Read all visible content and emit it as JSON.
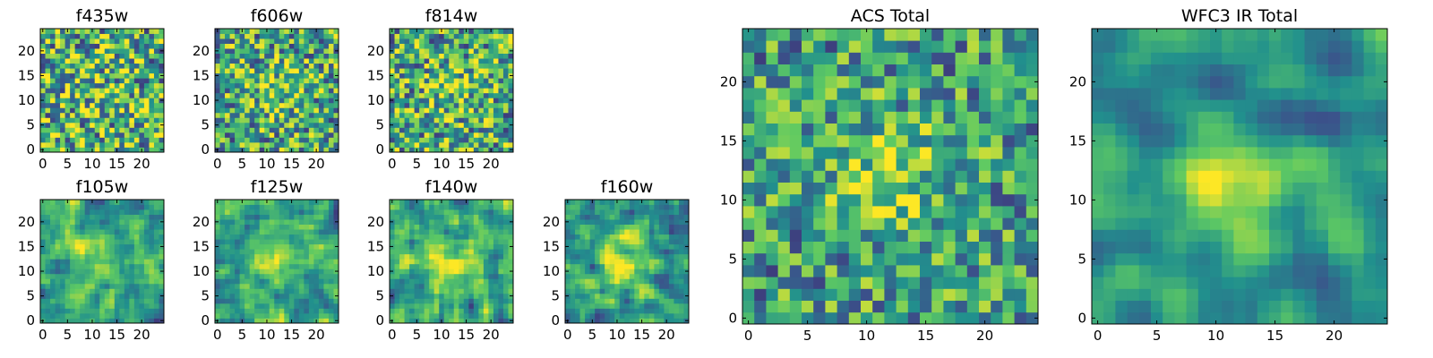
{
  "chart_data": [
    {
      "type": "heatmap",
      "title": "f435w",
      "xticks": [
        "0",
        "5",
        "10",
        "15",
        "20"
      ],
      "yticks": [
        "0",
        "5",
        "10",
        "15",
        "20"
      ],
      "xlim": [
        0,
        25
      ],
      "ylim": [
        0,
        25
      ],
      "grid": [
        25,
        25
      ],
      "colormap": "viridis",
      "seed": 11,
      "smooth": 0,
      "peak": 0.05
    },
    {
      "type": "heatmap",
      "title": "f606w",
      "xticks": [
        "0",
        "5",
        "10",
        "15",
        "20"
      ],
      "yticks": [
        "0",
        "5",
        "10",
        "15",
        "20"
      ],
      "xlim": [
        0,
        25
      ],
      "ylim": [
        0,
        25
      ],
      "grid": [
        25,
        25
      ],
      "colormap": "viridis",
      "seed": 23,
      "smooth": 0,
      "peak": 0.18
    },
    {
      "type": "heatmap",
      "title": "f814w",
      "xticks": [
        "0",
        "5",
        "10",
        "15",
        "20"
      ],
      "yticks": [
        "0",
        "5",
        "10",
        "15",
        "20"
      ],
      "xlim": [
        0,
        25
      ],
      "ylim": [
        0,
        25
      ],
      "grid": [
        25,
        25
      ],
      "colormap": "viridis",
      "seed": 37,
      "smooth": 0,
      "peak": 0.15
    },
    {
      "type": "heatmap",
      "title": "f105w",
      "xticks": [
        "0",
        "5",
        "10",
        "15",
        "20"
      ],
      "yticks": [
        "0",
        "5",
        "10",
        "15",
        "20"
      ],
      "xlim": [
        0,
        25
      ],
      "ylim": [
        0,
        25
      ],
      "grid": [
        25,
        25
      ],
      "colormap": "viridis",
      "seed": 41,
      "smooth": 1,
      "peak": 0.22
    },
    {
      "type": "heatmap",
      "title": "f125w",
      "xticks": [
        "0",
        "5",
        "10",
        "15",
        "20"
      ],
      "yticks": [
        "0",
        "5",
        "10",
        "15",
        "20"
      ],
      "xlim": [
        0,
        25
      ],
      "ylim": [
        0,
        25
      ],
      "grid": [
        25,
        25
      ],
      "colormap": "viridis",
      "seed": 53,
      "smooth": 1,
      "peak": 0.22
    },
    {
      "type": "heatmap",
      "title": "f140w",
      "xticks": [
        "0",
        "5",
        "10",
        "15",
        "20"
      ],
      "yticks": [
        "0",
        "5",
        "10",
        "15",
        "20"
      ],
      "xlim": [
        0,
        25
      ],
      "ylim": [
        0,
        25
      ],
      "grid": [
        25,
        25
      ],
      "colormap": "viridis",
      "seed": 67,
      "smooth": 1,
      "peak": 0.22
    },
    {
      "type": "heatmap",
      "title": "f160w",
      "xticks": [
        "0",
        "5",
        "10",
        "15",
        "20"
      ],
      "yticks": [
        "0",
        "5",
        "10",
        "15",
        "20"
      ],
      "xlim": [
        0,
        25
      ],
      "ylim": [
        0,
        25
      ],
      "grid": [
        25,
        25
      ],
      "colormap": "viridis",
      "seed": 71,
      "smooth": 1,
      "peak": 0.25
    },
    {
      "type": "heatmap",
      "title": "ACS Total",
      "xticks": [
        "0",
        "5",
        "10",
        "15",
        "20"
      ],
      "yticks": [
        "0",
        "5",
        "10",
        "15",
        "20"
      ],
      "xlim": [
        0,
        25
      ],
      "ylim": [
        0,
        25
      ],
      "grid": [
        25,
        25
      ],
      "colormap": "viridis",
      "seed": 83,
      "smooth": 0,
      "peak": 0.28
    },
    {
      "type": "heatmap",
      "title": "WFC3 IR Total",
      "xticks": [
        "0",
        "5",
        "10",
        "15",
        "20"
      ],
      "yticks": [
        "0",
        "5",
        "10",
        "15",
        "20"
      ],
      "xlim": [
        0,
        25
      ],
      "ylim": [
        0,
        25
      ],
      "grid": [
        25,
        25
      ],
      "colormap": "viridis",
      "seed": 97,
      "smooth": 2,
      "peak": 0.4
    }
  ],
  "colors": {
    "viridis": [
      "#440154",
      "#3b528b",
      "#21908d",
      "#5dc963",
      "#fde725"
    ]
  }
}
